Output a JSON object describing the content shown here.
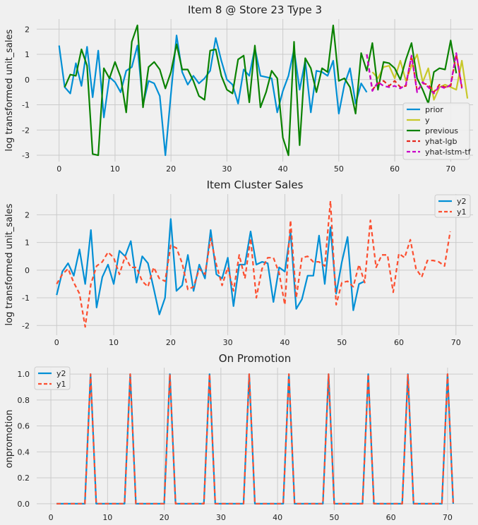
{
  "chart_data": [
    {
      "type": "line",
      "title": "Item 8 @ Store 23 Type 3",
      "xlabel": "",
      "ylabel": "log transformed unit_sales",
      "xlim": [
        -4,
        74
      ],
      "ylim": [
        -3.25,
        2.4
      ],
      "xticks": [
        0,
        10,
        20,
        30,
        40,
        50,
        60,
        70
      ],
      "yticks": [
        -3,
        -2,
        -1,
        0,
        1,
        2
      ],
      "grid": true,
      "legend": "bottom-right",
      "series": [
        {
          "name": "prior",
          "color": "#008fd5",
          "dash": "",
          "x0": 0,
          "values": [
            1.35,
            -0.3,
            -0.55,
            0.65,
            -0.25,
            1.3,
            -0.7,
            1.15,
            -1.5,
            0.1,
            -0.1,
            -0.5,
            0.35,
            0.5,
            1.35,
            -1.0,
            -0.05,
            -0.15,
            -0.65,
            -3.0,
            -0.55,
            1.75,
            0.3,
            -0.2,
            0.15,
            -0.15,
            0.05,
            0.35,
            1.65,
            0.75,
            0.0,
            -0.2,
            -0.95,
            0.4,
            0.15,
            1.25,
            0.15,
            0.1,
            0.05,
            -1.3,
            -0.45,
            0.15,
            1.2,
            -0.4,
            0.75,
            -1.3,
            0.35,
            0.3,
            0.15,
            0.75,
            -1.35,
            -0.2,
            0.45,
            -0.95,
            -0.15,
            -0.5
          ]
        },
        {
          "name": "y",
          "color": "#c8c82a",
          "dash": "",
          "x0": 56,
          "values": [
            0.3,
            0.05,
            0.5,
            0.55,
            0.05,
            0.75,
            -0.05,
            0.55,
            1.0,
            -0.1,
            0.45,
            -0.8,
            -0.3,
            -0.2,
            -0.3,
            -0.4,
            0.75,
            -0.75
          ]
        },
        {
          "name": "previous",
          "color": "#0a8200",
          "dash": "",
          "x0": 0,
          "values": [
            null,
            -0.3,
            0.2,
            0.15,
            1.2,
            0.55,
            -2.95,
            -3.0,
            0.45,
            0.05,
            0.7,
            0.1,
            -1.3,
            1.5,
            2.15,
            -1.1,
            0.5,
            0.7,
            0.4,
            -0.35,
            0.3,
            1.4,
            0.4,
            0.4,
            -0.05,
            -0.65,
            -0.8,
            1.15,
            1.2,
            0.15,
            -0.4,
            -0.55,
            0.8,
            0.95,
            -0.9,
            1.35,
            -1.1,
            -0.5,
            0.35,
            0.05,
            -2.3,
            -3.0,
            1.5,
            -2.6,
            0.85,
            0.45,
            -0.5,
            0.45,
            0.3,
            2.15,
            -0.05,
            0.05,
            -0.3,
            -1.35,
            1.05,
            0.35,
            1.45,
            -0.4,
            0.7,
            0.65,
            0.45,
            0.0,
            0.8,
            1.45,
            0.05,
            -0.4,
            -0.95,
            0.3,
            0.45,
            0.4,
            1.55,
            0.25
          ]
        },
        {
          "name": "yhat-lgb",
          "color": "#e5281d",
          "dash": "6,4",
          "x0": 55,
          "values": [
            1.0,
            -0.4,
            -0.15,
            -0.05,
            -0.25,
            -0.05,
            -0.3,
            -0.25,
            0.95,
            -0.45,
            -0.15,
            -0.2,
            -0.5,
            -0.2,
            -0.3,
            -0.25,
            1.0,
            -0.3
          ]
        },
        {
          "name": "yhat-lstm-tf",
          "color": "#c800c8",
          "dash": "6,4",
          "x0": 55,
          "values": [
            1.0,
            -0.45,
            -0.1,
            -0.25,
            -0.3,
            -0.25,
            -0.35,
            -0.2,
            0.95,
            -0.5,
            -0.1,
            -0.3,
            -0.55,
            -0.25,
            -0.35,
            -0.2,
            1.05,
            -0.35
          ]
        }
      ]
    },
    {
      "type": "line",
      "title": "Item Cluster Sales",
      "xlabel": "",
      "ylabel": "log transformed unit_sales",
      "xlim": [
        -3.5,
        73
      ],
      "ylim": [
        -2.35,
        2.75
      ],
      "xticks": [
        0,
        10,
        20,
        30,
        40,
        50,
        60,
        70
      ],
      "yticks": [
        -2,
        -1,
        0,
        1,
        2
      ],
      "grid": true,
      "legend": "top-right",
      "series": [
        {
          "name": "y2",
          "color": "#008fd5",
          "dash": "",
          "x0": 0,
          "values": [
            -0.9,
            -0.05,
            0.25,
            -0.2,
            0.75,
            -0.5,
            1.45,
            -1.35,
            -0.25,
            0.2,
            -0.5,
            0.7,
            0.5,
            1.05,
            -0.45,
            0.5,
            0.25,
            -0.65,
            -1.6,
            -1.0,
            1.85,
            -0.75,
            -0.55,
            0.55,
            -0.75,
            0.2,
            -0.3,
            1.45,
            -0.15,
            -0.3,
            0.45,
            -1.3,
            0.2,
            0.2,
            1.4,
            0.2,
            0.3,
            0.25,
            -1.15,
            0.1,
            -0.05,
            1.4,
            -1.4,
            -1.05,
            -0.2,
            -0.2,
            1.25,
            -0.5,
            1.55,
            -0.85,
            0.3,
            1.2,
            -1.45,
            -0.5,
            -0.4
          ]
        },
        {
          "name": "y1",
          "color": "#fc4f30",
          "dash": "6,4",
          "x0": 0,
          "values": [
            -0.5,
            -0.15,
            0.05,
            -0.45,
            -0.85,
            -2.05,
            -0.5,
            0.15,
            0.3,
            0.65,
            0.45,
            -0.15,
            0.5,
            0.1,
            0.1,
            -0.4,
            -0.6,
            0.1,
            -0.3,
            -0.4,
            0.9,
            0.8,
            0.25,
            -0.7,
            -0.6,
            0.05,
            -0.15,
            1.15,
            0.2,
            -0.55,
            0.1,
            -0.75,
            0.55,
            -0.3,
            1.15,
            -1.0,
            0.05,
            0.45,
            0.45,
            -0.1,
            -1.25,
            1.8,
            -1.0,
            0.45,
            0.5,
            0.3,
            0.3,
            0.15,
            2.5,
            -1.25,
            -0.45,
            -0.4,
            -0.6,
            0.2,
            -0.45,
            1.8,
            0.1,
            0.55,
            0.55,
            -0.8,
            0.6,
            0.45,
            1.1,
            0.05,
            -0.25,
            0.35,
            0.35,
            0.3,
            0.15,
            1.4
          ]
        }
      ]
    },
    {
      "type": "line",
      "title": "On Promotion",
      "xlabel": "",
      "ylabel": "onpromotion",
      "xlim": [
        -2.5,
        74.5
      ],
      "ylim": [
        -0.05,
        1.05
      ],
      "xticks": [
        0,
        10,
        20,
        30,
        40,
        50,
        60,
        70
      ],
      "yticks": [
        0.0,
        0.2,
        0.4,
        0.6,
        0.8,
        1.0
      ],
      "grid": true,
      "legend": "top-left",
      "series": [
        {
          "name": "y2",
          "color": "#008fd5",
          "dash": "",
          "x0": 1,
          "values": [
            0,
            0,
            0,
            0,
            0,
            0,
            1,
            0,
            0,
            0,
            0,
            0,
            0,
            1,
            0,
            0,
            0,
            0,
            0,
            0,
            1,
            0,
            0,
            0,
            0,
            0,
            0,
            1,
            0,
            0,
            0,
            0,
            0,
            0,
            1,
            0,
            0,
            0,
            0,
            0,
            0,
            1,
            0,
            0,
            0,
            0,
            0,
            0,
            1,
            0,
            0,
            0,
            0,
            0,
            0,
            1,
            0,
            0,
            0,
            0,
            0,
            0,
            1,
            0,
            0,
            0,
            0,
            0,
            0,
            1,
            0
          ]
        },
        {
          "name": "y1",
          "color": "#fc4f30",
          "dash": "6,4",
          "x0": 1,
          "values": [
            0,
            0,
            0,
            0,
            0,
            0,
            1,
            0,
            0,
            0,
            0,
            0,
            0,
            1,
            0,
            0,
            0,
            0,
            0,
            0,
            1,
            0,
            0,
            0,
            0,
            0,
            0,
            1,
            0,
            0,
            0,
            0,
            0,
            0,
            1,
            0,
            0,
            0,
            0,
            0,
            0,
            1,
            0,
            0,
            0,
            0,
            0,
            0,
            1,
            0,
            0,
            0,
            0,
            0,
            0,
            1,
            0,
            0,
            0,
            0,
            0,
            0,
            1,
            0,
            0,
            0,
            0,
            0,
            0,
            1,
            0
          ]
        }
      ]
    }
  ]
}
